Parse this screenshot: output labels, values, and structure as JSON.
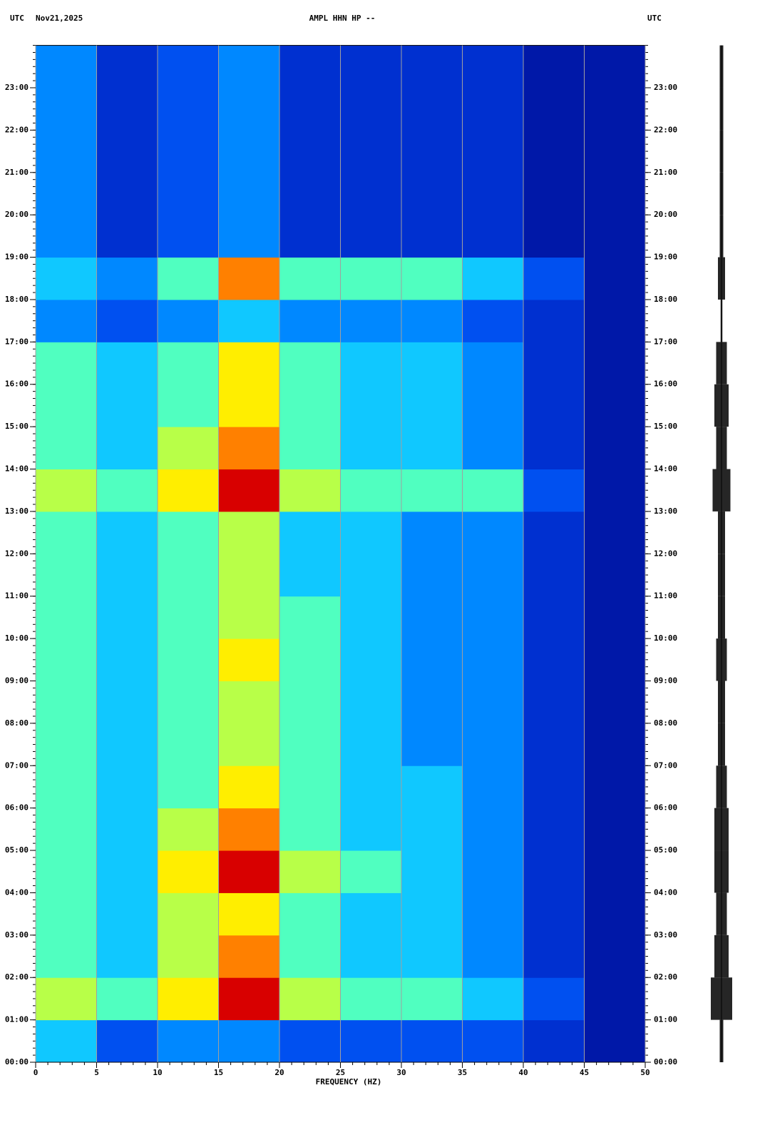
{
  "chart_data": [
    {
      "type": "heatmap",
      "header_left": "UTC",
      "date": "Nov21,2025",
      "title": "AMPL HHN HP --",
      "header_right": "UTC",
      "xlabel": "FREQUENCY (HZ)",
      "xbins": [
        0,
        5,
        10,
        15,
        20,
        25,
        30,
        35,
        40,
        45,
        50
      ],
      "xlim": [
        0,
        50
      ],
      "xticks": [
        0,
        5,
        10,
        15,
        20,
        25,
        30,
        35,
        40,
        45,
        50
      ],
      "ylim": [
        0,
        24
      ],
      "yticks": [
        {
          "value": 0,
          "label": "00:00"
        },
        {
          "value": 1,
          "label": "01:00"
        },
        {
          "value": 2,
          "label": "02:00"
        },
        {
          "value": 3,
          "label": "03:00"
        },
        {
          "value": 4,
          "label": "04:00"
        },
        {
          "value": 5,
          "label": "05:00"
        },
        {
          "value": 6,
          "label": "06:00"
        },
        {
          "value": 7,
          "label": "07:00"
        },
        {
          "value": 8,
          "label": "08:00"
        },
        {
          "value": 9,
          "label": "09:00"
        },
        {
          "value": 10,
          "label": "10:00"
        },
        {
          "value": 11,
          "label": "11:00"
        },
        {
          "value": 12,
          "label": "12:00"
        },
        {
          "value": 13,
          "label": "13:00"
        },
        {
          "value": 14,
          "label": "14:00"
        },
        {
          "value": 15,
          "label": "15:00"
        },
        {
          "value": 16,
          "label": "16:00"
        },
        {
          "value": 17,
          "label": "17:00"
        },
        {
          "value": 18,
          "label": "18:00"
        },
        {
          "value": 19,
          "label": "19:00"
        },
        {
          "value": 20,
          "label": "20:00"
        },
        {
          "value": 21,
          "label": "21:00"
        },
        {
          "value": 22,
          "label": "22:00"
        },
        {
          "value": 23,
          "label": "23:00"
        }
      ],
      "grid": true,
      "colorscale": [
        "#0018a8",
        "#0030d0",
        "#0050f0",
        "#0088ff",
        "#10c8ff",
        "#50ffc0",
        "#b8ff48",
        "#ffee00",
        "#ff8000",
        "#d80000",
        "#8b0000"
      ],
      "values": [
        [
          4,
          2,
          3,
          3,
          2,
          2,
          2,
          2,
          1,
          0
        ],
        [
          6,
          5,
          7,
          9,
          6,
          5,
          5,
          4,
          2,
          0
        ],
        [
          5,
          4,
          6,
          8,
          5,
          4,
          4,
          3,
          1,
          0
        ],
        [
          5,
          4,
          6,
          7,
          5,
          4,
          4,
          3,
          1,
          0
        ],
        [
          5,
          4,
          7,
          9,
          6,
          5,
          4,
          3,
          1,
          0
        ],
        [
          5,
          4,
          6,
          8,
          5,
          4,
          4,
          3,
          1,
          0
        ],
        [
          5,
          4,
          5,
          7,
          5,
          4,
          4,
          3,
          1,
          0
        ],
        [
          5,
          4,
          5,
          6,
          5,
          4,
          3,
          3,
          1,
          0
        ],
        [
          5,
          4,
          5,
          6,
          5,
          4,
          3,
          3,
          1,
          0
        ],
        [
          5,
          4,
          5,
          7,
          5,
          4,
          3,
          3,
          1,
          0
        ],
        [
          5,
          4,
          5,
          6,
          5,
          4,
          3,
          3,
          1,
          0
        ],
        [
          5,
          4,
          5,
          6,
          4,
          4,
          3,
          3,
          1,
          0
        ],
        [
          5,
          4,
          5,
          6,
          4,
          4,
          3,
          3,
          1,
          0
        ],
        [
          6,
          5,
          7,
          9,
          6,
          5,
          5,
          5,
          2,
          0
        ],
        [
          5,
          4,
          6,
          8,
          5,
          4,
          4,
          3,
          1,
          0
        ],
        [
          5,
          4,
          5,
          7,
          5,
          4,
          4,
          3,
          1,
          0
        ],
        [
          5,
          4,
          5,
          7,
          5,
          4,
          4,
          3,
          1,
          0
        ],
        [
          3,
          2,
          3,
          4,
          3,
          3,
          3,
          2,
          1,
          0
        ],
        [
          4,
          3,
          5,
          8,
          5,
          5,
          5,
          4,
          2,
          0
        ],
        [
          3,
          1,
          2,
          3,
          1,
          1,
          1,
          1,
          0,
          0
        ],
        [
          3,
          1,
          2,
          3,
          1,
          1,
          1,
          1,
          0,
          0
        ],
        [
          3,
          1,
          2,
          3,
          1,
          1,
          1,
          1,
          0,
          0
        ],
        [
          3,
          1,
          2,
          3,
          1,
          1,
          1,
          1,
          0,
          0
        ],
        [
          3,
          1,
          2,
          3,
          1,
          1,
          1,
          1,
          0,
          0
        ]
      ]
    },
    {
      "type": "trace",
      "color": "#000000",
      "xlim": [
        -10,
        10
      ],
      "ylim": [
        0,
        24
      ],
      "values": [
        1,
        6,
        4,
        3,
        4,
        4,
        3,
        2,
        2,
        3,
        2,
        2,
        2,
        5,
        3,
        4,
        3,
        0.5,
        2,
        1,
        1,
        1,
        1,
        1
      ]
    }
  ]
}
